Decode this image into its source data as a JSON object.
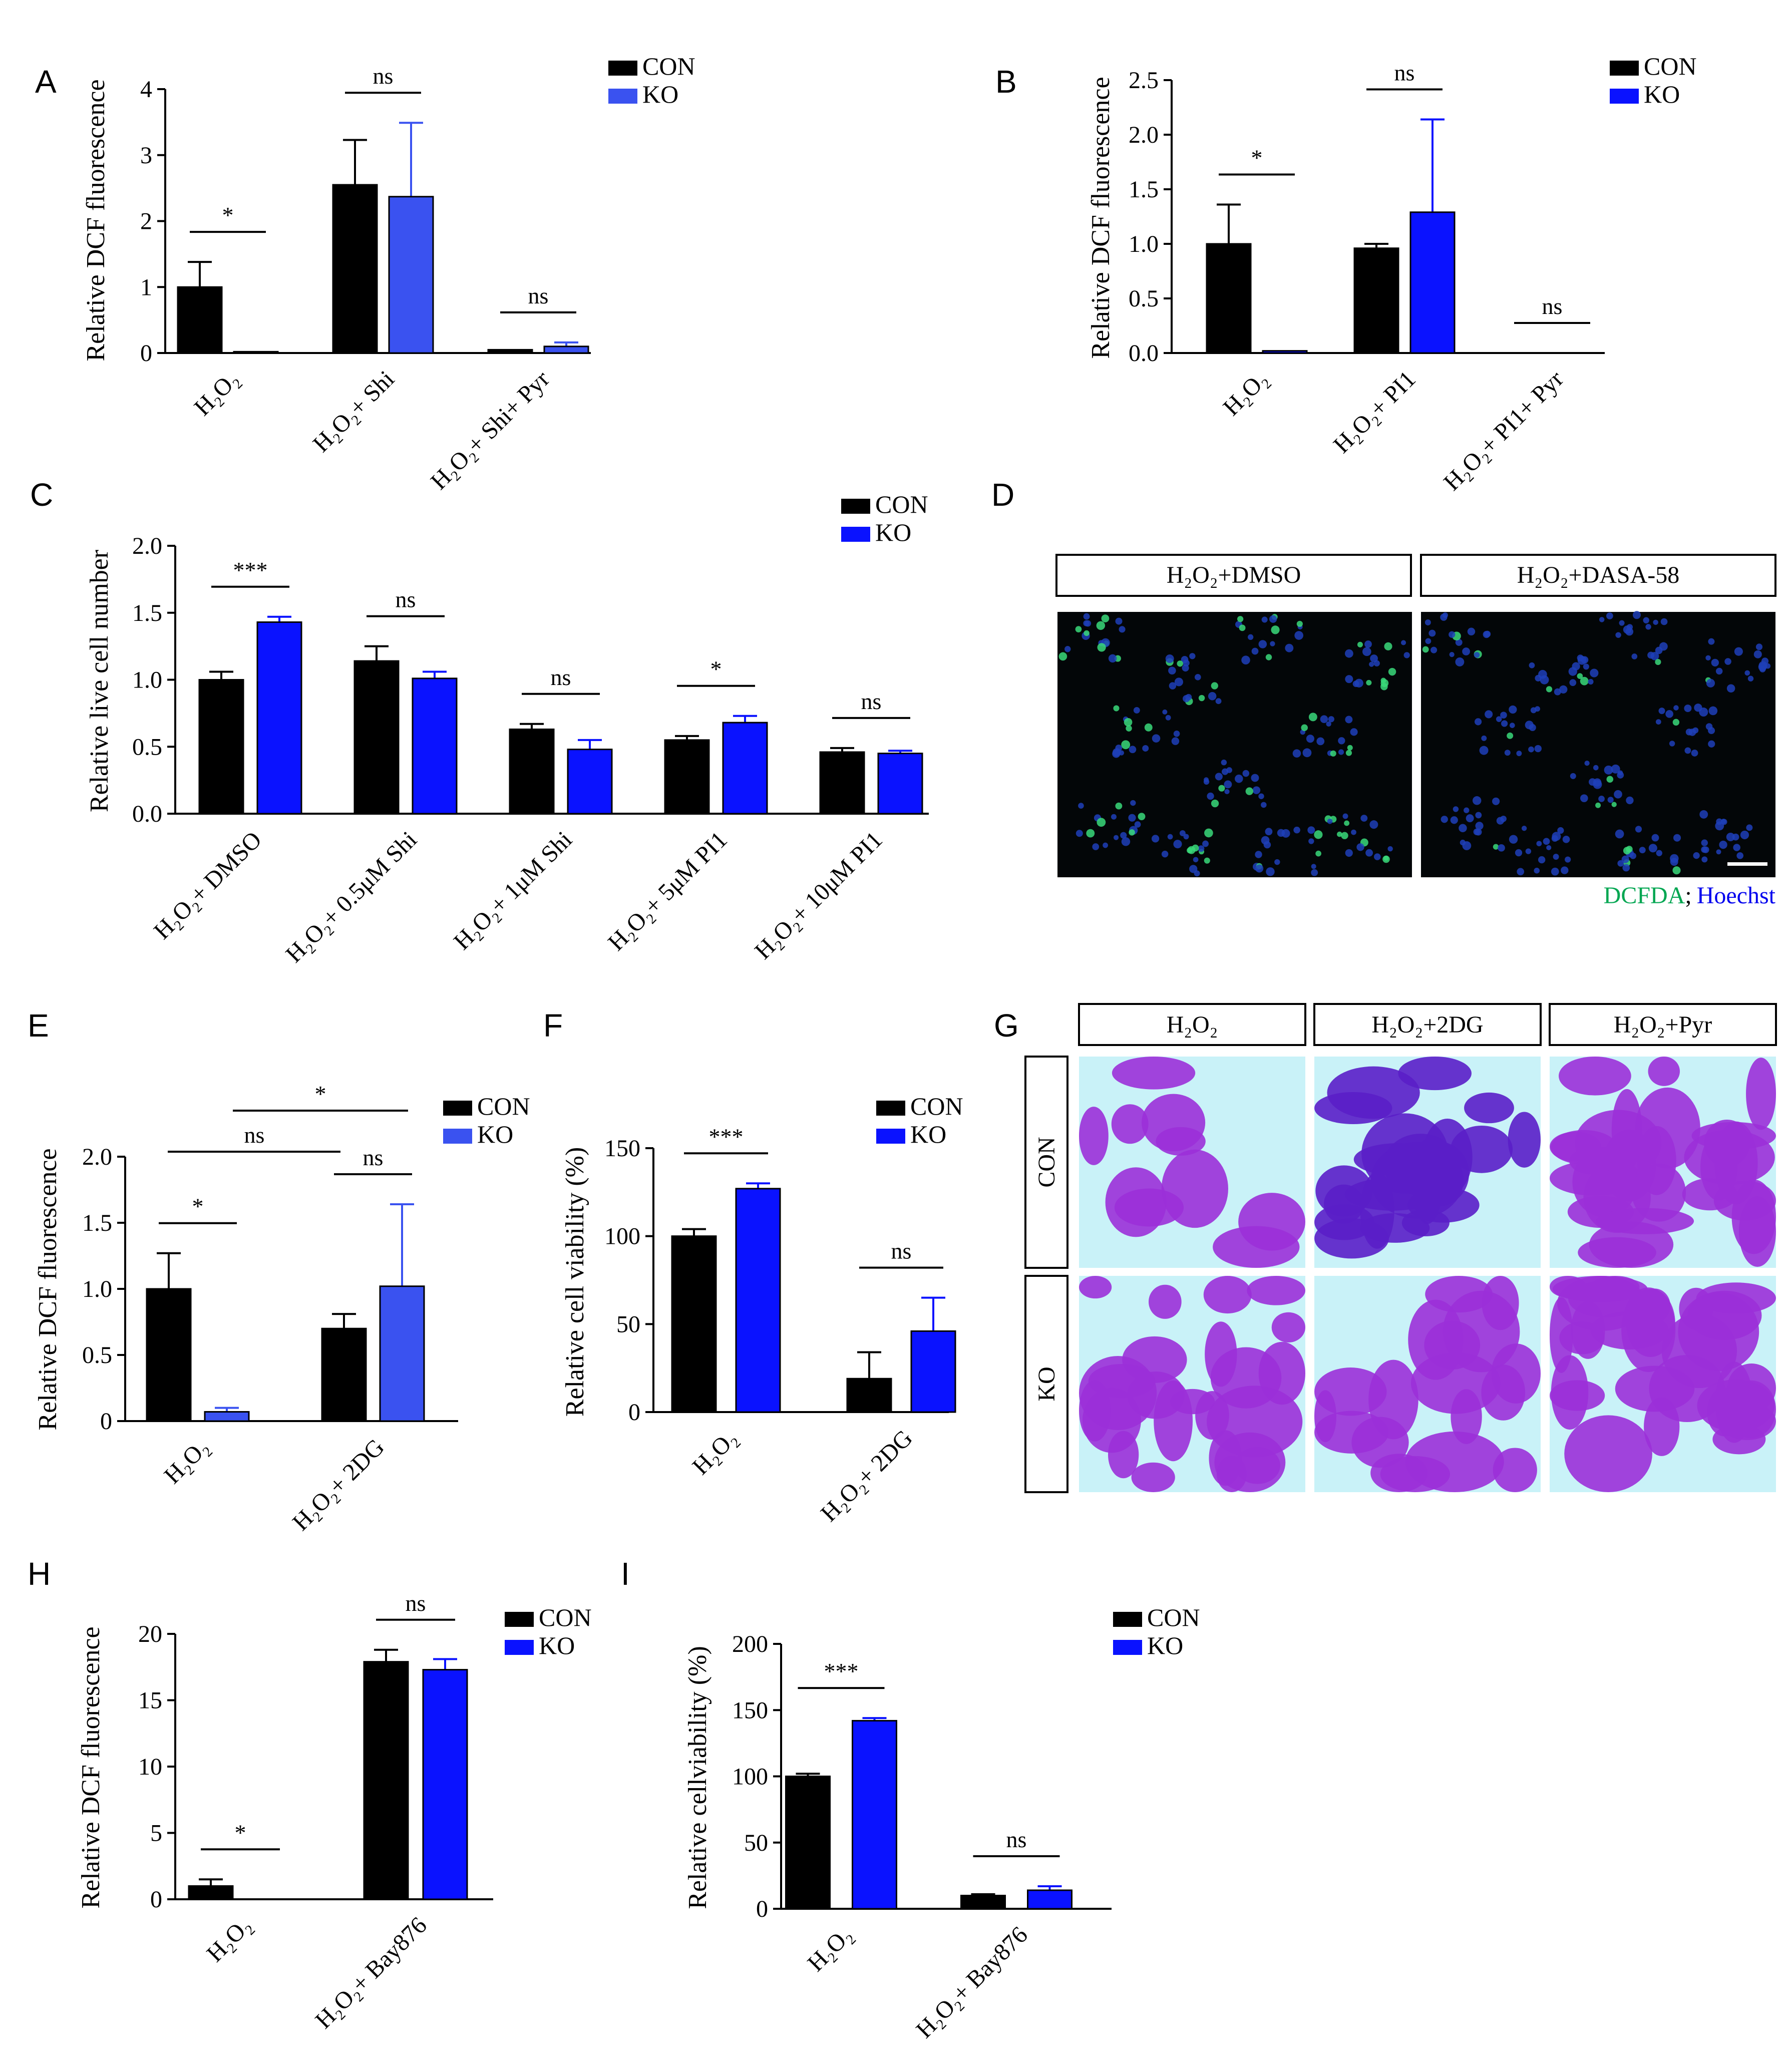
{
  "colors": {
    "con": "#000000",
    "ko_blue": "#0a12ff",
    "ko_light": "#3a52f0",
    "dcfda": "#00a651",
    "hoechst": "#0000ee"
  },
  "legend": {
    "con": "CON",
    "ko": "KO"
  },
  "chart_data": [
    {
      "id": "A",
      "type": "bar",
      "panel_letter": "A",
      "ylabel": "Relative DCF fluorescence",
      "ylim": [
        0,
        4
      ],
      "yticks": [
        "0",
        "1",
        "2",
        "3",
        "4"
      ],
      "categories": [
        "H₂O₂",
        "H₂O₂+ Shi",
        "H₂O₂+ Shi+ Pyr"
      ],
      "series": [
        {
          "name": "CON",
          "values": [
            1.0,
            2.55,
            0.05
          ],
          "errors": [
            0.38,
            0.68,
            0.0
          ]
        },
        {
          "name": "KO",
          "values": [
            0.02,
            2.37,
            0.1
          ],
          "errors": [
            0.0,
            1.12,
            0.06
          ]
        }
      ],
      "significance": [
        {
          "label": "*",
          "category": 0
        },
        {
          "label": "ns",
          "category": 1
        },
        {
          "label": "ns",
          "category": 2
        }
      ]
    },
    {
      "id": "B",
      "type": "bar",
      "panel_letter": "B",
      "ylabel": "Relative DCF fluorescence",
      "ylim": [
        0,
        2.5
      ],
      "yticks": [
        "0.0",
        "0.5",
        "1.0",
        "1.5",
        "2.0",
        "2.5"
      ],
      "categories": [
        "H₂O₂",
        "H₂O₂+ PI1",
        "H₂O₂+ PI1+ Pyr"
      ],
      "series": [
        {
          "name": "CON",
          "values": [
            1.0,
            0.96,
            0.0
          ],
          "errors": [
            0.36,
            0.04,
            0.0
          ]
        },
        {
          "name": "KO",
          "values": [
            0.02,
            1.29,
            0.0
          ],
          "errors": [
            0.0,
            0.85,
            0.0
          ]
        }
      ],
      "significance": [
        {
          "label": "*",
          "category": 0
        },
        {
          "label": "ns",
          "category": 1
        },
        {
          "label": "ns",
          "category": 2
        }
      ]
    },
    {
      "id": "C",
      "type": "bar",
      "panel_letter": "C",
      "ylabel": "Relative live cell number",
      "ylim": [
        0,
        2.0
      ],
      "yticks": [
        "0.0",
        "0.5",
        "1.0",
        "1.5",
        "2.0"
      ],
      "categories": [
        "H₂O₂+ DMSO",
        "H₂O₂+ 0.5μM Shi",
        "H₂O₂+ 1μM Shi",
        "H₂O₂+ 5μM PI1",
        "H₂O₂+ 10μM PI1"
      ],
      "series": [
        {
          "name": "CON",
          "values": [
            1.0,
            1.14,
            0.63,
            0.55,
            0.46
          ],
          "errors": [
            0.06,
            0.11,
            0.04,
            0.03,
            0.03
          ]
        },
        {
          "name": "KO",
          "values": [
            1.43,
            1.01,
            0.48,
            0.68,
            0.45
          ],
          "errors": [
            0.04,
            0.05,
            0.07,
            0.05,
            0.02
          ]
        }
      ],
      "significance": [
        {
          "label": "***",
          "category": 0
        },
        {
          "label": "ns",
          "category": 1
        },
        {
          "label": "ns",
          "category": 2
        },
        {
          "label": "*",
          "category": 3
        },
        {
          "label": "ns",
          "category": 4
        }
      ]
    },
    {
      "id": "E",
      "type": "bar",
      "panel_letter": "E",
      "ylabel": "Relative DCF fluorescence",
      "ylim": [
        0,
        2.0
      ],
      "yticks": [
        "0",
        "0.5",
        "1.0",
        "1.5",
        "2.0"
      ],
      "categories": [
        "H₂O₂",
        "H₂O₂+ 2DG"
      ],
      "series": [
        {
          "name": "CON",
          "values": [
            1.0,
            0.7
          ],
          "errors": [
            0.27,
            0.11
          ]
        },
        {
          "name": "KO",
          "values": [
            0.07,
            1.02
          ],
          "errors": [
            0.03,
            0.62
          ]
        }
      ],
      "significance": [
        {
          "label": "*",
          "category": 0
        },
        {
          "label": "ns",
          "category": 1
        },
        {
          "label": "ns",
          "between": "CON H₂O₂ – CON H₂O₂+ 2DG"
        },
        {
          "label": "*",
          "between": "KO H₂O₂ – KO H₂O₂+ 2DG"
        }
      ]
    },
    {
      "id": "F",
      "type": "bar",
      "panel_letter": "F",
      "ylabel": "Relative cell viability (%)",
      "ylim": [
        0,
        150
      ],
      "yticks": [
        "0",
        "50",
        "100",
        "150"
      ],
      "categories": [
        "H₂O₂",
        "H₂O₂+ 2DG"
      ],
      "series": [
        {
          "name": "CON",
          "values": [
            100,
            19
          ],
          "errors": [
            4,
            15
          ]
        },
        {
          "name": "KO",
          "values": [
            127,
            46
          ],
          "errors": [
            3,
            19
          ]
        }
      ],
      "significance": [
        {
          "label": "***",
          "category": 0
        },
        {
          "label": "ns",
          "category": 1
        }
      ]
    },
    {
      "id": "H",
      "type": "bar",
      "panel_letter": "H",
      "ylabel": "Relative DCF fluorescence",
      "ylim": [
        0,
        20
      ],
      "yticks": [
        "0",
        "5",
        "10",
        "15",
        "20"
      ],
      "categories": [
        "H₂O₂",
        "H₂O₂+ Bay876"
      ],
      "series": [
        {
          "name": "CON",
          "values": [
            1.0,
            17.9
          ],
          "errors": [
            0.5,
            0.9
          ]
        },
        {
          "name": "KO",
          "values": [
            0.0,
            17.3
          ],
          "errors": [
            0.0,
            0.8
          ]
        }
      ],
      "significance": [
        {
          "label": "*",
          "category": 0
        },
        {
          "label": "ns",
          "category": 1
        }
      ]
    },
    {
      "id": "I",
      "type": "bar",
      "panel_letter": "I",
      "ylabel": "Relative cellviability (%)",
      "ylim": [
        0,
        200
      ],
      "yticks": [
        "0",
        "50",
        "100",
        "150",
        "200"
      ],
      "categories": [
        "H₂O₂",
        "H₂O₂+ Bay876"
      ],
      "series": [
        {
          "name": "CON",
          "values": [
            100,
            10
          ],
          "errors": [
            2,
            1
          ]
        },
        {
          "name": "KO",
          "values": [
            142,
            14
          ],
          "errors": [
            2,
            3
          ]
        }
      ],
      "significance": [
        {
          "label": "***",
          "category": 0
        },
        {
          "label": "ns",
          "category": 1
        }
      ]
    }
  ],
  "panel_d": {
    "panel_letter": "D",
    "headers": [
      "H₂O₂+DMSO",
      "H₂O₂+DASA-58"
    ],
    "stain_dcfda": "DCFDA",
    "stain_sep": ";",
    "stain_hoechst": "Hoechst"
  },
  "panel_g": {
    "panel_letter": "G",
    "columns": [
      "H₂O₂",
      "H₂O₂+2DG",
      "H₂O₂+Pyr"
    ],
    "rows": [
      "CON",
      "KO"
    ]
  }
}
